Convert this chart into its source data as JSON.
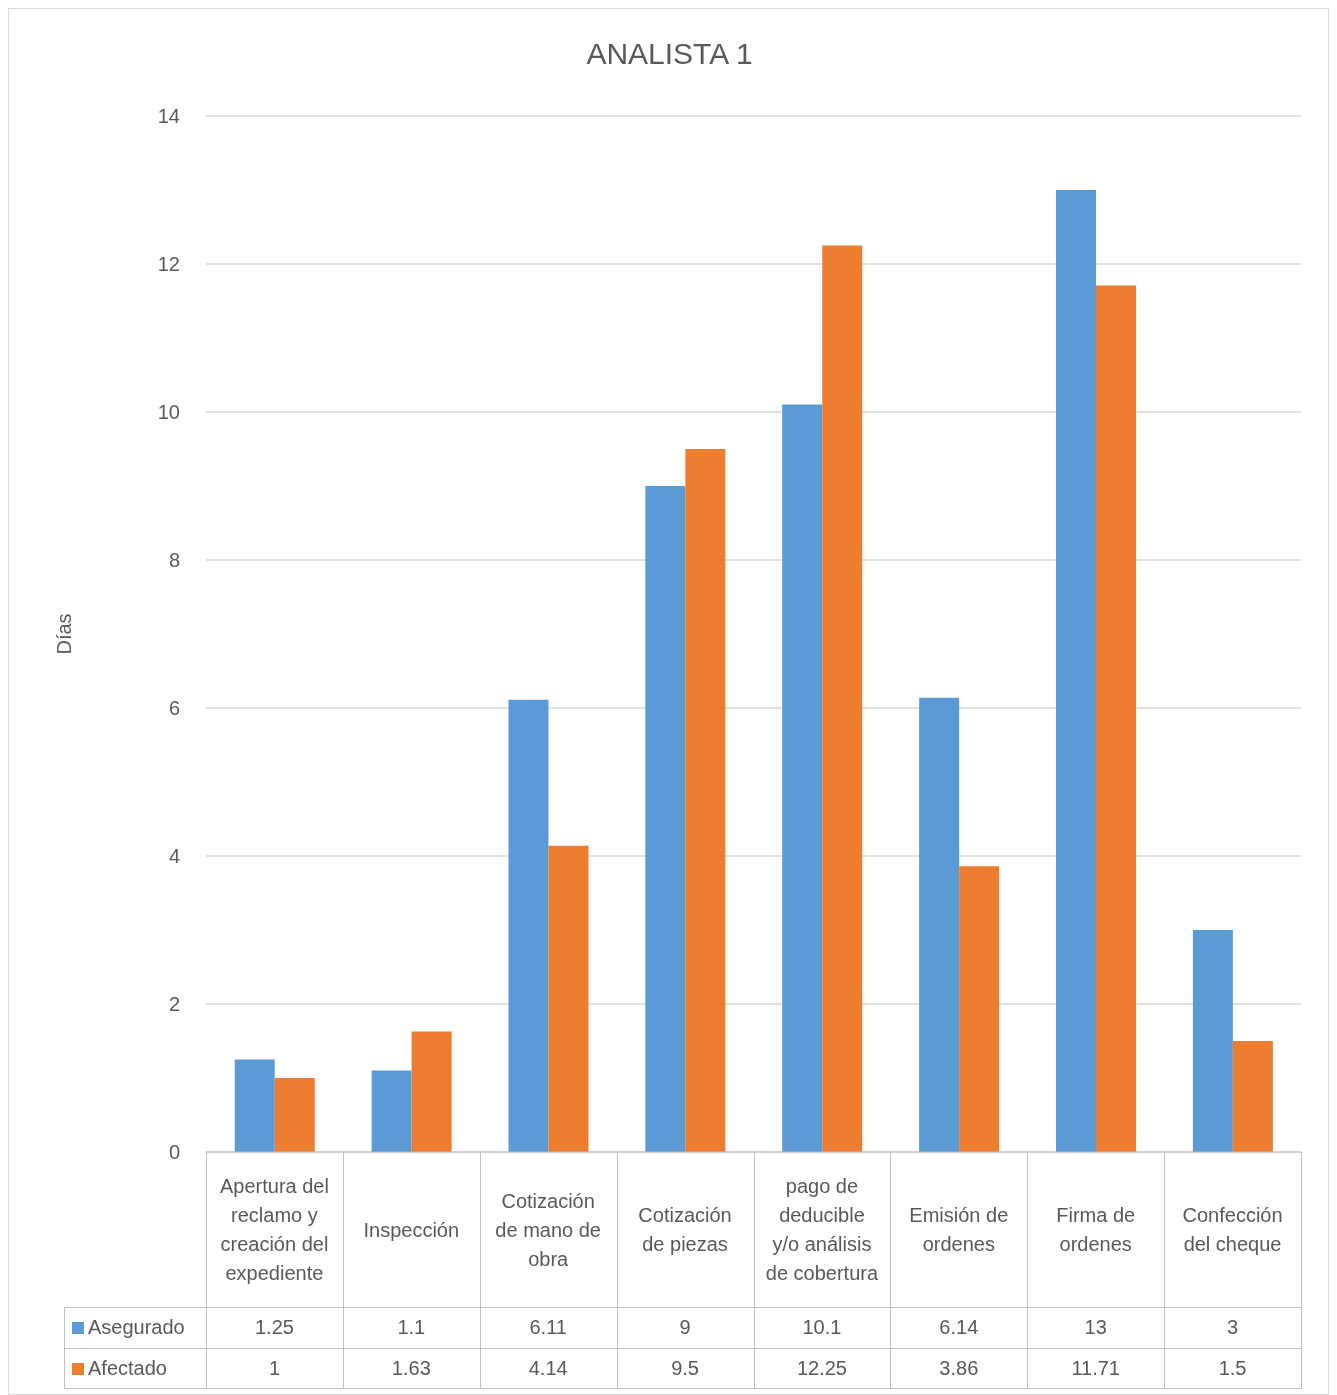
{
  "chart_data": {
    "type": "bar",
    "title": "ANALISTA 1",
    "ylabel": "Días",
    "categories": [
      "Apertura del reclamo y creación del expediente",
      "Inspección",
      "Cotización de mano de obra",
      "Cotización de piezas",
      "pago de deducible y/o análisis de cobertura",
      "Emisión de ordenes",
      "Firma de ordenes",
      "Confección del cheque"
    ],
    "series": [
      {
        "name": "Asegurado",
        "color": "#5b9bd5",
        "values": [
          1.25,
          1.1,
          6.11,
          9,
          10.1,
          6.14,
          13,
          3
        ]
      },
      {
        "name": "Afectado",
        "color": "#ed7d31",
        "values": [
          1,
          1.63,
          4.14,
          9.5,
          12.25,
          3.86,
          11.71,
          1.5
        ]
      }
    ],
    "ylim": [
      0,
      14
    ],
    "yticks": [
      0,
      2,
      4,
      6,
      8,
      10,
      12,
      14
    ],
    "grid": "y",
    "legend": "bottom",
    "data_labels": true
  }
}
